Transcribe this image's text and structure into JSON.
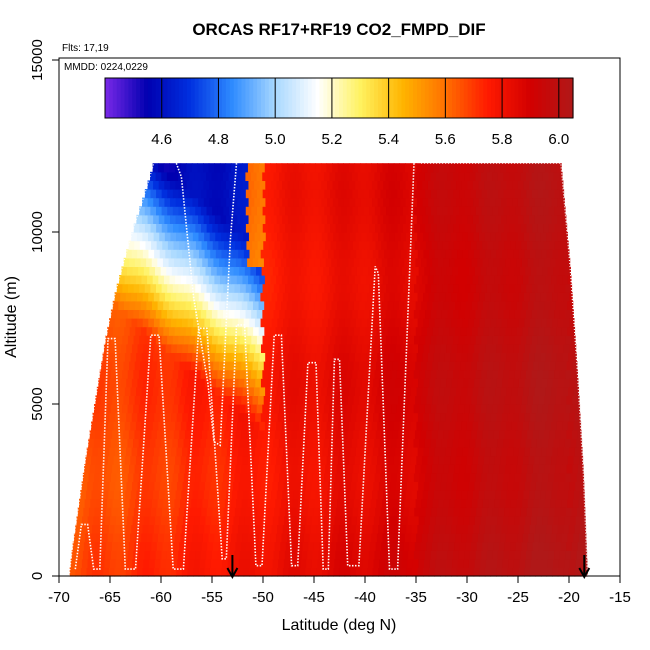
{
  "chart_data": {
    "type": "heatmap",
    "title": "ORCAS RF17+RF19 CO2_FMPD_DIF",
    "annotations": [
      "Flts: 17,19",
      "MMDD: 0224,0229"
    ],
    "xlabel": "Latitude (deg N)",
    "ylabel": "Altitude (m)",
    "xlim": [
      -70,
      -15
    ],
    "ylim": [
      0,
      15000
    ],
    "x_ticks": [
      -70,
      -65,
      -60,
      -55,
      -50,
      -45,
      -40,
      -35,
      -30,
      -25,
      -20,
      -15
    ],
    "y_ticks": [
      0,
      5000,
      10000,
      15000
    ],
    "colorbar": {
      "range": [
        4.4,
        6.05
      ],
      "ticks": [
        4.6,
        4.8,
        5.0,
        5.2,
        5.4,
        5.6,
        5.8,
        6.0
      ],
      "tick_labels": [
        "4.6",
        "4.8",
        "5.0",
        "5.2",
        "5.4",
        "5.6",
        "5.8",
        "6.0"
      ],
      "colors": [
        "#7a28e8",
        "#0000b0",
        "#0030e0",
        "#2f8cff",
        "#a8d8ff",
        "#ffffff",
        "#fff260",
        "#ffb400",
        "#ff7000",
        "#ff1a00",
        "#d20000",
        "#b01818"
      ]
    },
    "arrows_latitude": [
      -53,
      -18.5
    ],
    "flight_track": [
      [
        -68.4,
        200
      ],
      [
        -67.8,
        1500
      ],
      [
        -67.2,
        1500
      ],
      [
        -66.6,
        200
      ],
      [
        -66.0,
        200
      ],
      [
        -65.2,
        6900
      ],
      [
        -64.5,
        6900
      ],
      [
        -63.5,
        200
      ],
      [
        -62.5,
        200
      ],
      [
        -61.0,
        7000
      ],
      [
        -60.2,
        7000
      ],
      [
        -58.8,
        200
      ],
      [
        -57.8,
        200
      ],
      [
        -56.3,
        7200
      ],
      [
        -55.5,
        7200
      ],
      [
        -54.0,
        500
      ],
      [
        -53.6,
        500
      ],
      [
        -52.6,
        7300
      ],
      [
        -51.8,
        7300
      ],
      [
        -50.7,
        300
      ],
      [
        -50.1,
        300
      ],
      [
        -48.9,
        7000
      ],
      [
        -48.2,
        7000
      ],
      [
        -47.2,
        300
      ],
      [
        -46.6,
        300
      ],
      [
        -45.6,
        6200
      ],
      [
        -44.8,
        6200
      ],
      [
        -44.1,
        200
      ],
      [
        -43.6,
        200
      ],
      [
        -43.0,
        6300
      ],
      [
        -42.5,
        6300
      ],
      [
        -41.7,
        300
      ],
      [
        -40.6,
        300
      ],
      [
        -39.0,
        9000
      ],
      [
        -38.7,
        8800
      ],
      [
        -37.6,
        200
      ],
      [
        -36.8,
        200
      ],
      [
        -35.2,
        12000
      ]
    ],
    "flight_track_2": [
      [
        -58.5,
        12000
      ],
      [
        -58.0,
        11600
      ],
      [
        -56.8,
        8100
      ],
      [
        -55.4,
        5600
      ],
      [
        -54.8,
        3900
      ],
      [
        -54.2,
        3800
      ],
      [
        -53.2,
        9800
      ],
      [
        -52.6,
        12000
      ]
    ],
    "envelope_left": [
      [
        -69.0,
        0
      ],
      [
        -68.7,
        800
      ],
      [
        -68.0,
        2200
      ],
      [
        -67.3,
        3600
      ],
      [
        -66.5,
        5000
      ],
      [
        -65.5,
        6800
      ],
      [
        -64.5,
        8200
      ],
      [
        -63.5,
        9300
      ],
      [
        -62.5,
        10300
      ],
      [
        -61.5,
        11200
      ],
      [
        -60.7,
        12000
      ]
    ],
    "envelope_right": [
      [
        -34.5,
        12000
      ],
      [
        -20.8,
        12000
      ],
      [
        -19.9,
        9000
      ],
      [
        -19.2,
        6000
      ],
      [
        -18.6,
        3000
      ],
      [
        -18.2,
        0
      ]
    ]
  }
}
